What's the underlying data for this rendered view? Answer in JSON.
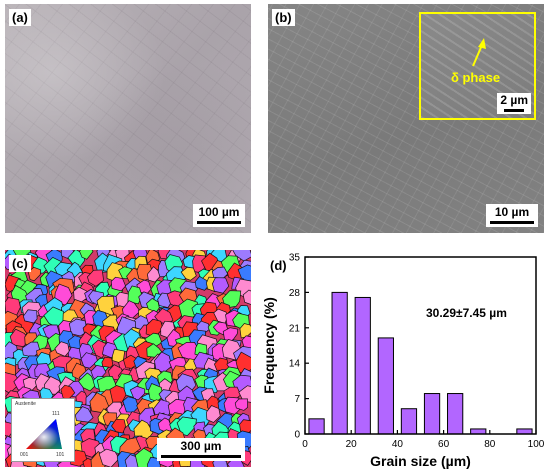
{
  "panels": {
    "a": {
      "label": "(a)",
      "scale_bar": "100 µm"
    },
    "b": {
      "label": "(b)",
      "scale_bar": "10 µm",
      "inset": {
        "annotation": "δ phase",
        "scale_bar": "2 µm",
        "border_color": "#ffff00"
      }
    },
    "c": {
      "label": "(c)",
      "scale_bar": "300 µm",
      "legend": {
        "title": "Austenite",
        "corners": [
          "111",
          "001",
          "101"
        ]
      }
    },
    "d": {
      "label": "(d)",
      "annotation": "30.29±7.45 µm"
    }
  },
  "chart_data": {
    "type": "bar",
    "xlabel": "Grain size (µm)",
    "ylabel": "Frequency (%)",
    "xlim": [
      0,
      100
    ],
    "ylim": [
      0,
      35
    ],
    "xticks": [
      0,
      20,
      40,
      60,
      80,
      100
    ],
    "yticks": [
      0,
      7,
      14,
      21,
      28,
      35
    ],
    "bar_color": "#b266ff",
    "series": [
      {
        "x": [
          5,
          15,
          25,
          35,
          45,
          55,
          65,
          75,
          95
        ],
        "values": [
          3,
          28,
          27,
          19,
          5,
          8,
          8,
          1,
          1
        ]
      }
    ]
  }
}
